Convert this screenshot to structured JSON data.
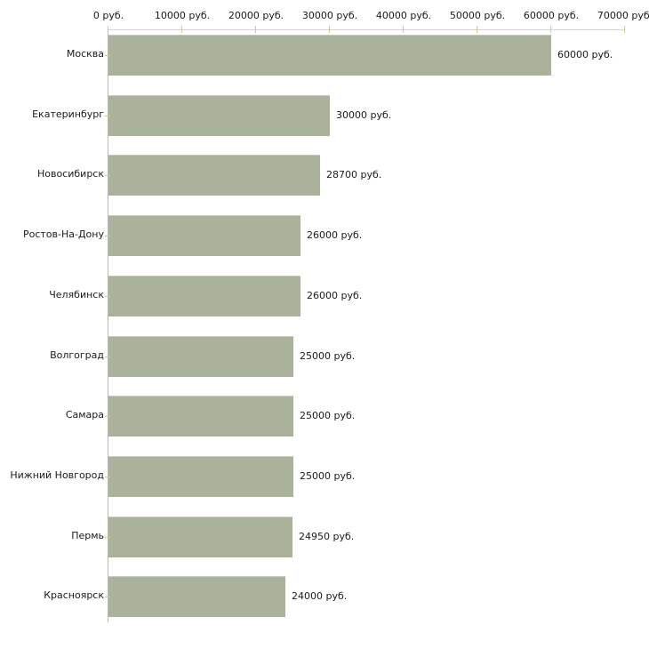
{
  "chart_data": {
    "type": "bar",
    "orientation": "horizontal",
    "title": "",
    "xlabel": "",
    "ylabel": "",
    "grid": false,
    "legend": null,
    "categories": [
      "Москва",
      "Екатеринбург",
      "Новосибирск",
      "Ростов-На-Дону",
      "Челябинск",
      "Волгоград",
      "Самара",
      "Нижний Новгород",
      "Пермь",
      "Красноярск"
    ],
    "values": [
      60000,
      30000,
      28700,
      26000,
      26000,
      25000,
      25000,
      25000,
      24950,
      24000
    ],
    "value_labels": [
      "60000 руб.",
      "30000 руб.",
      "28700 руб.",
      "26000 руб.",
      "26000 руб.",
      "25000 руб.",
      "25000 руб.",
      "25000 руб.",
      "24950 руб.",
      "24000 руб."
    ],
    "x_axis": {
      "position": "top",
      "range": [
        0,
        70000
      ],
      "ticks": [
        0,
        10000,
        20000,
        30000,
        40000,
        50000,
        60000,
        70000
      ],
      "tick_labels": [
        "0 руб.",
        "10000 руб.",
        "20000 руб.",
        "30000 руб.",
        "40000 руб.",
        "50000 руб.",
        "60000 руб.",
        "70000 руб."
      ]
    },
    "colors": {
      "bar_fill": "#abb29b",
      "bar_top_edge": "#c9cdb9",
      "axis_line_top": "#d4d4d4",
      "axis_line_left": "#b8b8b8",
      "tick_mark": "#c8cba6",
      "text": "#1a1a1a",
      "background": "#ffffff"
    }
  }
}
